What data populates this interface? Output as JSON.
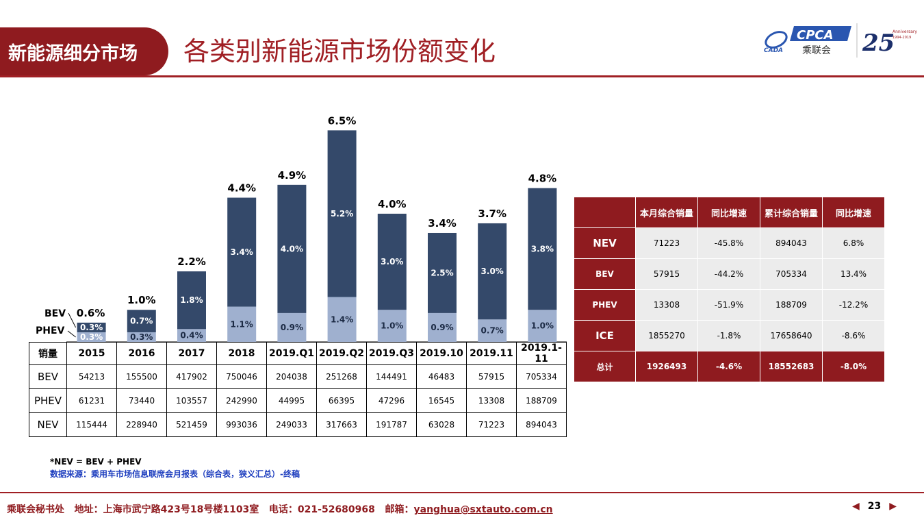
{
  "header": {
    "section": "新能源细分市场",
    "title": "各类别新能源市场份额变化",
    "logo_cpca": "CPCA",
    "logo_cpca_cn": "乘联会",
    "logo_cada": "CADA",
    "logo_25": "25",
    "logo_anniv": "Anniversary",
    "logo_anniv_years": "1994-2019"
  },
  "colors": {
    "brand": "#8f1b1f",
    "bev": "#34496a",
    "phev": "#9fb0cf",
    "note_blue": "#1f3fbf"
  },
  "chart_data": {
    "type": "bar",
    "stacked": true,
    "categories": [
      "2015",
      "2016",
      "2017",
      "2018",
      "2019.Q1",
      "2019.Q2",
      "2019.Q3",
      "2019.10",
      "2019.11",
      "2019.1-11"
    ],
    "series": [
      {
        "name": "PHEV",
        "values": [
          0.3,
          0.3,
          0.4,
          1.1,
          0.9,
          1.4,
          1.0,
          0.9,
          0.7,
          1.0
        ],
        "labels": [
          "0.3%",
          "0.3%",
          "0.4%",
          "1.1%",
          "0.9%",
          "1.4%",
          "1.0%",
          "0.9%",
          "0.7%",
          "1.0%"
        ]
      },
      {
        "name": "BEV",
        "values": [
          0.3,
          0.7,
          1.8,
          3.4,
          4.0,
          5.2,
          3.0,
          2.5,
          3.0,
          3.8
        ],
        "labels": [
          "0.3%",
          "0.7%",
          "1.8%",
          "3.4%",
          "4.0%",
          "5.2%",
          "3.0%",
          "2.5%",
          "3.0%",
          "3.8%"
        ]
      }
    ],
    "totals": [
      0.6,
      1.0,
      2.2,
      4.4,
      4.9,
      6.5,
      4.0,
      3.4,
      3.7,
      4.8
    ],
    "total_labels": [
      "0.6%",
      "1.0%",
      "2.2%",
      "4.4%",
      "4.9%",
      "6.5%",
      "4.0%",
      "3.4%",
      "3.7%",
      "4.8%"
    ],
    "legend": [
      "BEV",
      "PHEV"
    ],
    "unit": "%",
    "ylim": [
      0,
      6.5
    ]
  },
  "volume_table": {
    "corner": "销量",
    "headers": [
      "2015",
      "2016",
      "2017",
      "2018",
      "2019.Q1",
      "2019.Q2",
      "2019.Q3",
      "2019.10",
      "2019.11",
      "2019.1-11"
    ],
    "rows": [
      {
        "label": "BEV",
        "cells": [
          "54213",
          "155500",
          "417902",
          "750046",
          "204038",
          "251268",
          "144491",
          "46483",
          "57915",
          "705334"
        ]
      },
      {
        "label": "PHEV",
        "cells": [
          "61231",
          "73440",
          "103557",
          "242990",
          "44995",
          "66395",
          "47296",
          "16545",
          "13308",
          "188709"
        ]
      },
      {
        "label": "NEV",
        "cells": [
          "115444",
          "228940",
          "521459",
          "993036",
          "249033",
          "317663",
          "191787",
          "63028",
          "71223",
          "894043"
        ]
      }
    ]
  },
  "summary_table": {
    "headers": [
      "",
      "本月综合销量",
      "同比增速",
      "累计综合销量",
      "同比增速"
    ],
    "rows": [
      {
        "label": "NEV",
        "cells": [
          "71223",
          "-45.8%",
          "894043",
          "6.8%"
        ]
      },
      {
        "label": "BEV",
        "cells": [
          "57915",
          "-44.2%",
          "705334",
          "13.4%"
        ]
      },
      {
        "label": "PHEV",
        "cells": [
          "13308",
          "-51.9%",
          "188709",
          "-12.2%"
        ]
      },
      {
        "label": "ICE",
        "cells": [
          "1855270",
          "-1.8%",
          "17658640",
          "-8.6%"
        ]
      },
      {
        "label": "总计",
        "cells": [
          "1926493",
          "-4.6%",
          "18552683",
          "-8.0%"
        ]
      }
    ]
  },
  "notes": {
    "formula": "*NEV = BEV + PHEV",
    "source": "数据来源：乘用车市场信息联席会月报表（综合表，狭义汇总）-终稿"
  },
  "footer": {
    "org": "乘联会秘书处",
    "address": "地址：上海市武宁路423号18号楼1103室",
    "phone": "电话：021-52680968",
    "email_label": "邮箱：",
    "email": "yanghua@sxtauto.com.cn",
    "page": "23"
  }
}
